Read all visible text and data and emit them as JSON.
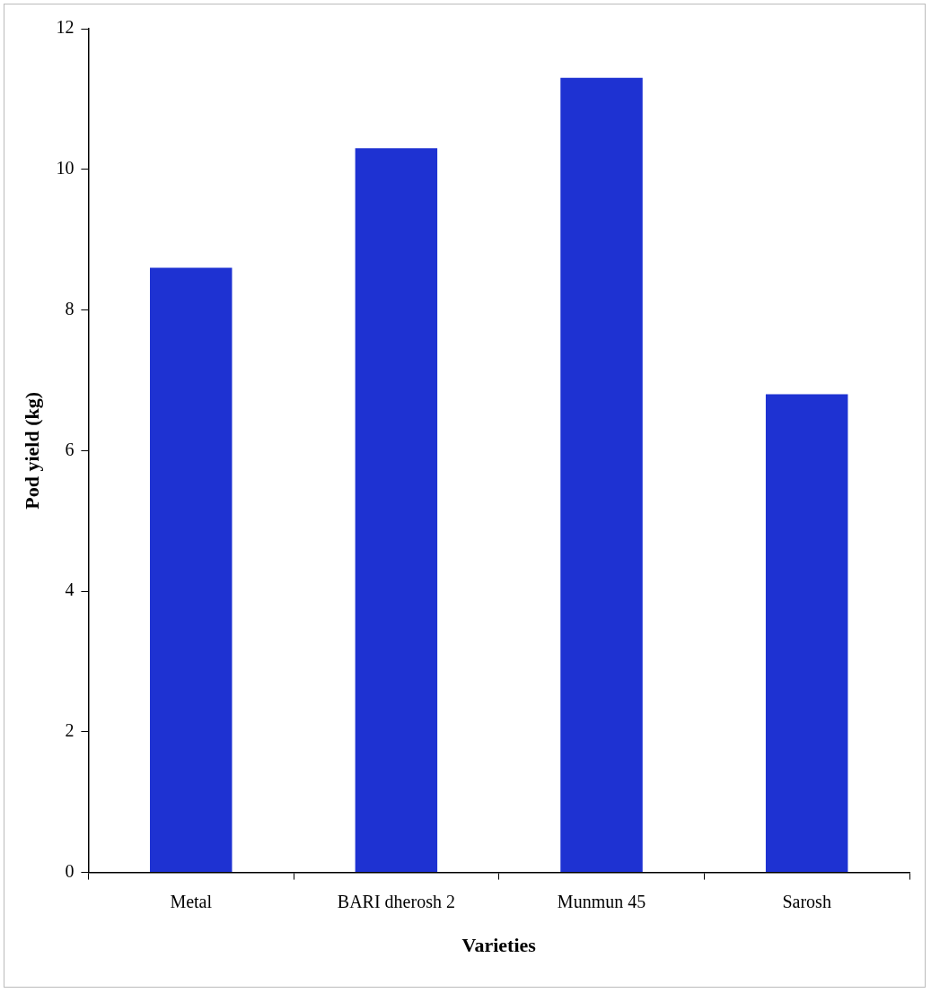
{
  "chart_data": {
    "type": "bar",
    "xlabel": "Varieties",
    "ylabel": "Pod yield (kg)",
    "categories": [
      "Metal",
      "BARI dherosh 2",
      "Munmun 45",
      "Sarosh"
    ],
    "values": [
      8.6,
      10.3,
      11.3,
      6.8
    ],
    "color": "#1e32d2",
    "ylim": [
      0,
      12
    ],
    "yticks": [
      0,
      2,
      4,
      6,
      8,
      10,
      12
    ],
    "grid": false,
    "legend": false
  }
}
